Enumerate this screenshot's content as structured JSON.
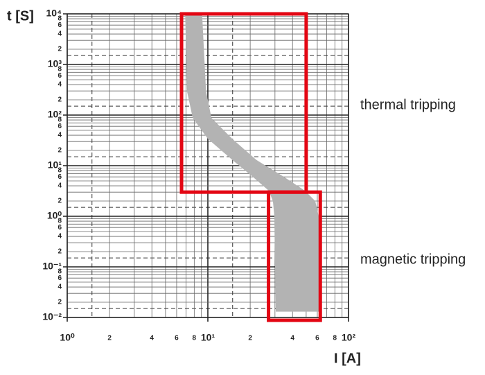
{
  "chart_data": {
    "type": "band",
    "xlabel": "I [A]",
    "ylabel": "t [S]",
    "log_x": true,
    "log_y": true,
    "grid": true,
    "xlim": [
      1,
      100
    ],
    "ylim": [
      0.01,
      10000
    ],
    "xticks": [
      {
        "value": 1,
        "label": "10⁰"
      },
      2,
      4,
      6,
      8,
      {
        "value": 10,
        "label": "10¹"
      },
      {
        "value": 20,
        "label": "2"
      },
      {
        "value": 40,
        "label": "4"
      },
      {
        "value": 60,
        "label": "6"
      },
      {
        "value": 80,
        "label": "8"
      },
      {
        "value": 100,
        "label": "10²"
      }
    ],
    "yticks": [
      {
        "value": 0.01,
        "label": "10⁻²"
      },
      {
        "value": 0.02,
        "label": "2"
      },
      {
        "value": 0.04,
        "label": "4"
      },
      {
        "value": 0.06,
        "label": "6"
      },
      {
        "value": 0.08,
        "label": "8"
      },
      {
        "value": 0.1,
        "label": "10⁻¹"
      },
      {
        "value": 0.2,
        "label": "2"
      },
      {
        "value": 0.4,
        "label": "4"
      },
      {
        "value": 0.6,
        "label": "6"
      },
      {
        "value": 0.8,
        "label": "8"
      },
      {
        "value": 1,
        "label": "10⁰"
      },
      2,
      4,
      6,
      8,
      {
        "value": 10,
        "label": "10¹"
      },
      {
        "value": 20,
        "label": "2"
      },
      {
        "value": 40,
        "label": "4"
      },
      {
        "value": 60,
        "label": "6"
      },
      {
        "value": 80,
        "label": "8"
      },
      {
        "value": 100,
        "label": "10²"
      },
      {
        "value": 200,
        "label": "2"
      },
      {
        "value": 400,
        "label": "4"
      },
      {
        "value": 600,
        "label": "6"
      },
      {
        "value": 800,
        "label": "8"
      },
      {
        "value": 1000,
        "label": "10³"
      },
      {
        "value": 2000,
        "label": "2"
      },
      {
        "value": 4000,
        "label": "4"
      },
      {
        "value": 6000,
        "label": "6"
      },
      {
        "value": 8000,
        "label": "8"
      },
      {
        "value": 10000,
        "label": "10⁴"
      }
    ],
    "xminor_grid": [
      3,
      5,
      7,
      9,
      30,
      50,
      70,
      90
    ],
    "yminor_grid": [
      0.03,
      0.05,
      0.07,
      0.09,
      0.3,
      0.5,
      0.7,
      0.9,
      3,
      5,
      7,
      9,
      30,
      50,
      70,
      90,
      300,
      500,
      700,
      900,
      3000,
      5000,
      7000,
      9000
    ],
    "xdashed_grid": [
      1.5,
      15
    ],
    "ydashed_grid": [
      0.015,
      0.15,
      1.5,
      15,
      150,
      1500
    ],
    "band": {
      "color": "#b3b3b3",
      "y": [
        10000,
        300,
        88,
        34,
        13,
        6,
        3.2,
        2,
        1,
        0.013
      ],
      "x_low": [
        6.9,
        7.1,
        7.8,
        10,
        14.9,
        20.9,
        27.1,
        29,
        29.7,
        30.4
      ],
      "x_high": [
        9.1,
        9.7,
        10.6,
        14.9,
        22.1,
        34.8,
        49,
        58,
        61.4,
        61.4
      ]
    },
    "region_color": "#e30613",
    "regions": [
      {
        "label": "thermal tripping",
        "xlim": [
          6.5,
          50
        ],
        "ylim": [
          3,
          10000
        ]
      },
      {
        "label": "magnetic tripping",
        "xlim": [
          27,
          63
        ],
        "ylim": [
          0.0088,
          3
        ]
      }
    ]
  }
}
